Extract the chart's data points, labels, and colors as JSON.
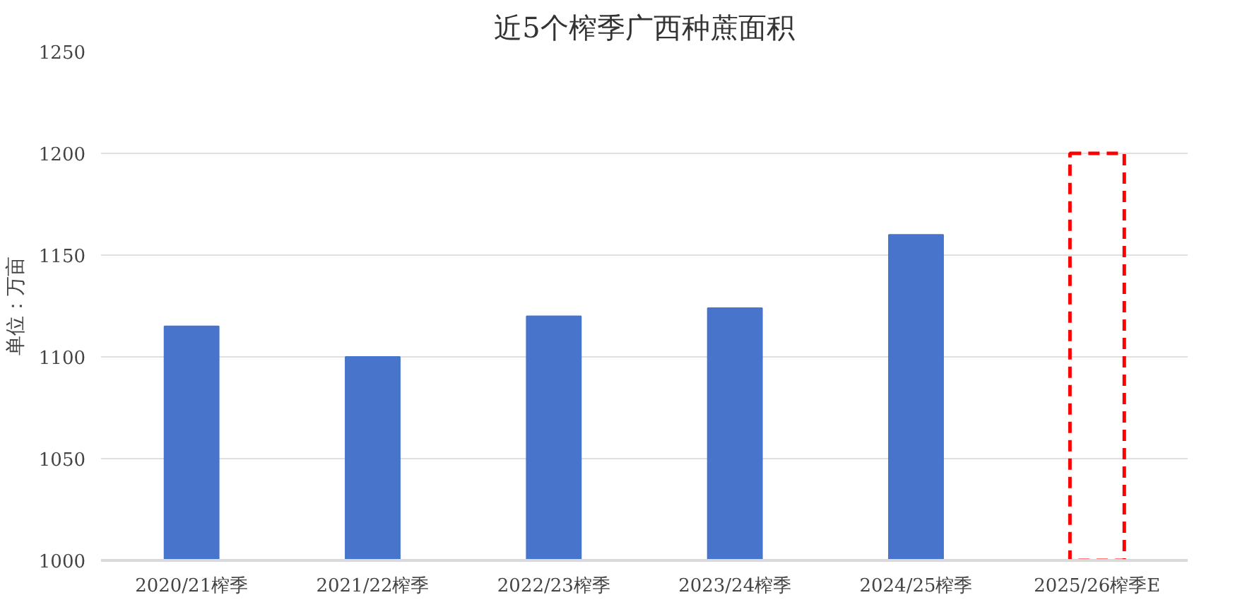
{
  "chart_data": {
    "type": "bar",
    "title": "近5个榨季广西种蔗面积",
    "ylabel": "单位：万亩",
    "categories": [
      "2020/21榨季",
      "2021/22榨季",
      "2022/23榨季",
      "2023/24榨季",
      "2024/25榨季",
      "2025/26榨季E"
    ],
    "series": [
      {
        "color": "#4874cb",
        "values": [
          1115,
          1100,
          1120,
          1124,
          1160,
          null
        ]
      },
      {
        "color": "#ff0000",
        "line_style": "dashed",
        "values": [
          null,
          null,
          null,
          null,
          null,
          1200
        ]
      }
    ],
    "ylim": [
      1000,
      1250
    ],
    "yticks": [
      1000,
      1050,
      1100,
      1150,
      1200,
      1250
    ],
    "grid": "y"
  }
}
